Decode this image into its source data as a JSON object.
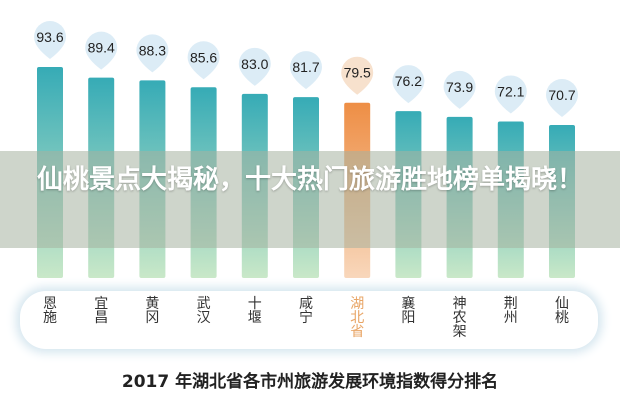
{
  "headline": "仙桃景点大揭秘，十大热门旅游胜地榜单揭晓！",
  "chart_data": {
    "type": "bar",
    "title": "2017 年湖北省各市州旅游发展环境指数得分排名",
    "categories": [
      "恩施",
      "宜昌",
      "黄冈",
      "武汉",
      "十堰",
      "咸宁",
      "湖北省",
      "襄阳",
      "神农架",
      "荆州",
      "仙桃"
    ],
    "values": [
      93.6,
      89.4,
      88.3,
      85.6,
      83.0,
      81.7,
      79.5,
      76.2,
      73.9,
      72.1,
      70.7
    ],
    "value_labels": [
      "93.6",
      "89.4",
      "88.3",
      "85.6",
      "83.0",
      "81.7",
      "79.5",
      "76.2",
      "73.9",
      "72.1",
      "70.7"
    ],
    "highlight": "湖北省",
    "xlabel": "",
    "ylabel": "",
    "grid": false,
    "colors": {
      "bar": "#3aafb8",
      "bar_bottom": "#c9e8c8",
      "highlight": "#ee8e45",
      "highlight_bottom": "#f8d7bb",
      "bubble": "#d6e9f4",
      "highlight_bubble": "#f6dcc4"
    }
  }
}
